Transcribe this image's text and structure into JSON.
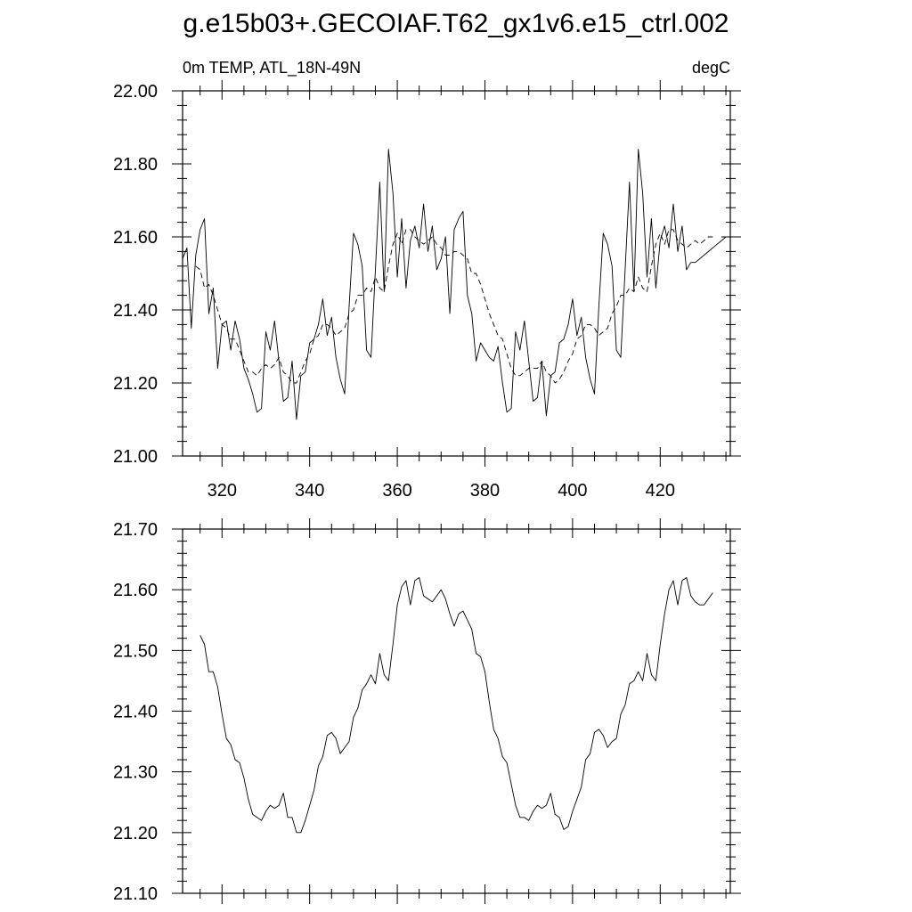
{
  "figure": {
    "title": "g.e15b03+.GECOIAF.T62_gx1v6.e15_ctrl.002"
  },
  "chart_data": [
    {
      "type": "line",
      "left_label": "0m TEMP, ATL_18N-49N",
      "right_label": "degC",
      "xlim": [
        311,
        436
      ],
      "ylim": [
        21.0,
        22.0
      ],
      "x_ticks": [
        320,
        340,
        360,
        380,
        400,
        420
      ],
      "y_ticks": [
        21.0,
        21.2,
        21.4,
        21.6,
        21.8,
        22.0
      ],
      "y_tick_labels": [
        "21.00",
        "21.20",
        "21.40",
        "21.60",
        "21.80",
        "22.00"
      ],
      "x_tick_labels": [
        "320",
        "340",
        "360",
        "380",
        "400",
        "420"
      ],
      "series": [
        {
          "style": "solid",
          "x": [
            311,
            312,
            313,
            314,
            315,
            316,
            317,
            318,
            319,
            320,
            321,
            322,
            323,
            324,
            325,
            326,
            327,
            328,
            329,
            330,
            331,
            332,
            333,
            334,
            335,
            336,
            337,
            338,
            339,
            340,
            341,
            342,
            343,
            344,
            345,
            346,
            347,
            348,
            349,
            350,
            351,
            352,
            353,
            354,
            355,
            356,
            357,
            358,
            359,
            360,
            361,
            362,
            363,
            364,
            365,
            366,
            367,
            368,
            369,
            370,
            371,
            372,
            373,
            374,
            375,
            376,
            377,
            378,
            379,
            380,
            381,
            382,
            383,
            384,
            385,
            386,
            387,
            388,
            389,
            390,
            391,
            392,
            393,
            394,
            395,
            396,
            397,
            398,
            399,
            400,
            401,
            402,
            403,
            404,
            405,
            406,
            407,
            408,
            409,
            410,
            411,
            412,
            413,
            414,
            415,
            416,
            417,
            418,
            419,
            420,
            421,
            422,
            423,
            424,
            425,
            426,
            427,
            428,
            429,
            430,
            431,
            432,
            433,
            434,
            435
          ],
          "values": [
            21.54,
            21.57,
            21.35,
            21.55,
            21.62,
            21.65,
            21.39,
            21.46,
            21.24,
            21.36,
            21.37,
            21.29,
            21.37,
            21.32,
            21.24,
            21.21,
            21.17,
            21.12,
            21.13,
            21.34,
            21.29,
            21.37,
            21.26,
            21.15,
            21.16,
            21.26,
            21.1,
            21.22,
            21.23,
            21.31,
            21.32,
            21.36,
            21.43,
            21.33,
            21.38,
            21.27,
            21.21,
            21.17,
            21.41,
            21.61,
            21.58,
            21.52,
            21.29,
            21.27,
            21.51,
            21.75,
            21.45,
            21.84,
            21.72,
            21.49,
            21.65,
            21.46,
            21.59,
            21.63,
            21.57,
            21.69,
            21.56,
            21.63,
            21.51,
            21.54,
            21.6,
            21.39,
            21.62,
            21.65,
            21.67,
            21.44,
            21.39,
            21.26,
            21.31,
            21.29,
            21.27,
            21.26,
            21.3,
            21.2,
            21.12,
            21.13,
            21.34,
            21.29,
            21.37,
            21.26,
            21.15,
            21.16,
            21.26,
            21.11,
            21.22,
            21.23,
            21.31,
            21.32,
            21.36,
            21.43,
            21.33,
            21.38,
            21.27,
            21.21,
            21.17,
            21.41,
            21.61,
            21.58,
            21.52,
            21.29,
            21.27,
            21.51,
            21.75,
            21.45,
            21.84,
            21.72,
            21.49,
            21.65,
            21.46,
            21.59,
            21.63,
            21.57,
            21.69,
            21.56,
            21.63,
            21.51,
            21.53,
            21.53,
            21.54,
            21.55,
            21.56,
            21.57,
            21.58,
            21.59,
            21.6
          ]
        },
        {
          "style": "dashed",
          "x": [
            314,
            315,
            316,
            317,
            318,
            319,
            320,
            321,
            322,
            323,
            324,
            325,
            326,
            327,
            328,
            329,
            330,
            331,
            332,
            333,
            334,
            335,
            336,
            337,
            338,
            339,
            340,
            341,
            342,
            343,
            344,
            345,
            346,
            347,
            348,
            349,
            350,
            351,
            352,
            353,
            354,
            355,
            356,
            357,
            358,
            359,
            360,
            361,
            362,
            363,
            364,
            365,
            366,
            367,
            368,
            369,
            370,
            371,
            372,
            373,
            374,
            375,
            376,
            377,
            378,
            379,
            380,
            381,
            382,
            383,
            384,
            385,
            386,
            387,
            388,
            389,
            390,
            391,
            392,
            393,
            394,
            395,
            396,
            397,
            398,
            399,
            400,
            401,
            402,
            403,
            404,
            405,
            406,
            407,
            408,
            409,
            410,
            411,
            412,
            413,
            414,
            415,
            416,
            417,
            418,
            419,
            420,
            421,
            422,
            423,
            424,
            425,
            426,
            427,
            428,
            429,
            430,
            431,
            432
          ],
          "values": [
            21.52,
            21.51,
            21.46,
            21.47,
            21.44,
            21.4,
            21.36,
            21.35,
            21.32,
            21.32,
            21.29,
            21.26,
            21.23,
            21.23,
            21.22,
            21.24,
            21.25,
            21.24,
            21.25,
            21.27,
            21.23,
            21.22,
            21.2,
            21.2,
            21.23,
            21.26,
            21.28,
            21.32,
            21.33,
            21.36,
            21.36,
            21.35,
            21.33,
            21.34,
            21.35,
            21.39,
            21.4,
            21.44,
            21.44,
            21.46,
            21.45,
            21.49,
            21.46,
            21.45,
            21.52,
            21.58,
            21.61,
            21.58,
            21.62,
            21.62,
            21.6,
            21.59,
            21.58,
            21.59,
            21.6,
            21.58,
            21.57,
            21.55,
            21.55,
            21.56,
            21.56,
            21.55,
            21.54,
            21.5,
            21.5,
            21.47,
            21.43,
            21.39,
            21.36,
            21.33,
            21.32,
            21.28,
            21.24,
            21.22,
            21.22,
            21.23,
            21.24,
            21.24,
            21.24,
            21.26,
            21.23,
            21.22,
            21.2,
            21.21,
            21.23,
            21.26,
            21.28,
            21.32,
            21.33,
            21.36,
            21.36,
            21.35,
            21.33,
            21.34,
            21.35,
            21.39,
            21.41,
            21.44,
            21.44,
            21.46,
            21.45,
            21.49,
            21.46,
            21.45,
            21.52,
            21.58,
            21.61,
            21.58,
            21.62,
            21.62,
            21.59,
            21.58,
            21.57,
            21.58,
            21.59,
            21.58,
            21.59,
            21.6,
            21.6
          ]
        }
      ]
    },
    {
      "type": "line",
      "xlim": [
        311,
        436
      ],
      "ylim": [
        21.1,
        21.7
      ],
      "x_ticks": [
        320,
        340,
        360,
        380,
        400,
        420
      ],
      "y_ticks": [
        21.1,
        21.2,
        21.3,
        21.4,
        21.5,
        21.6,
        21.7
      ],
      "y_tick_labels": [
        "21.10",
        "21.20",
        "21.30",
        "21.40",
        "21.50",
        "21.60",
        "21.70"
      ],
      "series": [
        {
          "style": "solid",
          "x": [
            315,
            316,
            317,
            318,
            319,
            320,
            321,
            322,
            323,
            324,
            325,
            326,
            327,
            328,
            329,
            330,
            331,
            332,
            333,
            334,
            335,
            336,
            337,
            338,
            339,
            340,
            341,
            342,
            343,
            344,
            345,
            346,
            347,
            348,
            349,
            350,
            351,
            352,
            353,
            354,
            355,
            356,
            357,
            358,
            359,
            360,
            361,
            362,
            363,
            364,
            365,
            366,
            367,
            368,
            369,
            370,
            371,
            372,
            373,
            374,
            375,
            376,
            377,
            378,
            379,
            380,
            381,
            382,
            383,
            384,
            385,
            386,
            387,
            388,
            389,
            390,
            391,
            392,
            393,
            394,
            395,
            396,
            397,
            398,
            399,
            400,
            401,
            402,
            403,
            404,
            405,
            406,
            407,
            408,
            409,
            410,
            411,
            412,
            413,
            414,
            415,
            416,
            417,
            418,
            419,
            420,
            421,
            422,
            423,
            424,
            425,
            426,
            427,
            428,
            429,
            430,
            431,
            432
          ],
          "values": [
            21.525,
            21.51,
            21.465,
            21.465,
            21.44,
            21.395,
            21.355,
            21.345,
            21.32,
            21.315,
            21.29,
            21.255,
            21.23,
            21.225,
            21.22,
            21.235,
            21.245,
            21.24,
            21.245,
            21.265,
            21.225,
            21.225,
            21.2,
            21.2,
            21.22,
            21.245,
            21.27,
            21.31,
            21.325,
            21.36,
            21.365,
            21.355,
            21.33,
            21.34,
            21.35,
            21.39,
            21.405,
            21.435,
            21.445,
            21.46,
            21.445,
            21.495,
            21.46,
            21.45,
            21.51,
            21.575,
            21.605,
            21.615,
            21.575,
            21.615,
            21.62,
            21.59,
            21.585,
            21.58,
            21.59,
            21.6,
            21.585,
            21.56,
            21.54,
            21.56,
            21.565,
            21.55,
            21.535,
            21.495,
            21.49,
            21.465,
            21.415,
            21.37,
            21.355,
            21.325,
            21.315,
            21.28,
            21.245,
            21.225,
            21.225,
            21.22,
            21.235,
            21.245,
            21.24,
            21.245,
            21.265,
            21.23,
            21.225,
            21.205,
            21.21,
            21.235,
            21.255,
            21.275,
            21.32,
            21.33,
            21.365,
            21.37,
            21.36,
            21.34,
            21.35,
            21.355,
            21.395,
            21.41,
            21.445,
            21.45,
            21.465,
            21.45,
            21.495,
            21.46,
            21.45,
            21.51,
            21.56,
            21.6,
            21.615,
            21.575,
            21.615,
            21.62,
            21.59,
            21.58,
            21.575,
            21.575,
            21.585,
            21.595
          ]
        }
      ]
    }
  ]
}
